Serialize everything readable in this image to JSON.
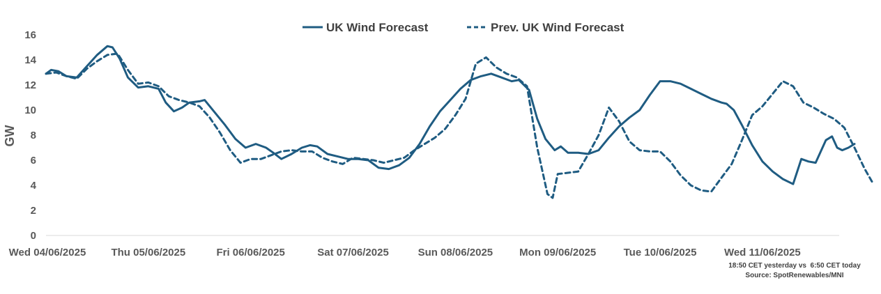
{
  "chart_data": {
    "type": "line",
    "title": "",
    "xlabel": "",
    "ylabel": "GW",
    "ylim": [
      0,
      16
    ],
    "yticks": [
      0,
      2,
      4,
      6,
      8,
      10,
      12,
      14,
      16
    ],
    "grid": false,
    "legend_position": "top-center",
    "color": "#1f5c82",
    "x_domain": [
      0,
      7.75
    ],
    "x_ticks": [
      {
        "x": 0,
        "label": "Wed 04/06/2025"
      },
      {
        "x": 1,
        "label": "Thu 05/06/2025"
      },
      {
        "x": 2,
        "label": "Fri 06/06/2025"
      },
      {
        "x": 3,
        "label": "Sat 07/06/2025"
      },
      {
        "x": 4,
        "label": "Sun 08/06/2025"
      },
      {
        "x": 5,
        "label": "Mon 09/06/2025"
      },
      {
        "x": 6,
        "label": "Tue 10/06/2025"
      },
      {
        "x": 7,
        "label": "Wed 11/06/2025"
      }
    ],
    "series": [
      {
        "name": "UK Wind Forecast",
        "style": "solid",
        "points": [
          [
            0,
            12.9
          ],
          [
            0.05,
            13.2
          ],
          [
            0.12,
            13.1
          ],
          [
            0.2,
            12.7
          ],
          [
            0.3,
            12.6
          ],
          [
            0.4,
            13.5
          ],
          [
            0.5,
            14.4
          ],
          [
            0.6,
            15.1
          ],
          [
            0.65,
            15.0
          ],
          [
            0.72,
            14.1
          ],
          [
            0.8,
            12.6
          ],
          [
            0.9,
            11.8
          ],
          [
            1,
            11.9
          ],
          [
            1.1,
            11.7
          ],
          [
            1.17,
            10.6
          ],
          [
            1.25,
            9.9
          ],
          [
            1.33,
            10.2
          ],
          [
            1.4,
            10.6
          ],
          [
            1.5,
            10.7
          ],
          [
            1.55,
            10.8
          ],
          [
            1.65,
            9.8
          ],
          [
            1.75,
            8.8
          ],
          [
            1.85,
            7.7
          ],
          [
            1.95,
            7.0
          ],
          [
            2.05,
            7.3
          ],
          [
            2.15,
            7.0
          ],
          [
            2.22,
            6.6
          ],
          [
            2.3,
            6.1
          ],
          [
            2.4,
            6.5
          ],
          [
            2.5,
            7.0
          ],
          [
            2.58,
            7.2
          ],
          [
            2.65,
            7.1
          ],
          [
            2.75,
            6.5
          ],
          [
            2.85,
            6.3
          ],
          [
            2.95,
            6.1
          ],
          [
            3.05,
            6.1
          ],
          [
            3.15,
            6.0
          ],
          [
            3.25,
            5.4
          ],
          [
            3.35,
            5.3
          ],
          [
            3.45,
            5.6
          ],
          [
            3.55,
            6.2
          ],
          [
            3.65,
            7.3
          ],
          [
            3.75,
            8.7
          ],
          [
            3.85,
            9.9
          ],
          [
            3.95,
            10.8
          ],
          [
            4.05,
            11.7
          ],
          [
            4.15,
            12.4
          ],
          [
            4.25,
            12.7
          ],
          [
            4.35,
            12.9
          ],
          [
            4.45,
            12.6
          ],
          [
            4.55,
            12.3
          ],
          [
            4.62,
            12.4
          ],
          [
            4.72,
            11.6
          ],
          [
            4.8,
            9.3
          ],
          [
            4.88,
            7.7
          ],
          [
            4.97,
            6.8
          ],
          [
            5.03,
            7.1
          ],
          [
            5.1,
            6.6
          ],
          [
            5.2,
            6.6
          ],
          [
            5.3,
            6.5
          ],
          [
            5.4,
            6.8
          ],
          [
            5.5,
            7.8
          ],
          [
            5.6,
            8.7
          ],
          [
            5.7,
            9.4
          ],
          [
            5.8,
            10.0
          ],
          [
            5.9,
            11.2
          ],
          [
            6,
            12.3
          ],
          [
            6.1,
            12.3
          ],
          [
            6.2,
            12.1
          ],
          [
            6.3,
            11.7
          ],
          [
            6.4,
            11.3
          ],
          [
            6.5,
            10.9
          ],
          [
            6.6,
            10.6
          ],
          [
            6.65,
            10.5
          ],
          [
            6.72,
            10.0
          ],
          [
            6.8,
            8.8
          ],
          [
            6.9,
            7.2
          ],
          [
            7,
            5.9
          ],
          [
            7.1,
            5.1
          ],
          [
            7.2,
            4.5
          ],
          [
            7.3,
            4.1
          ],
          [
            7.38,
            6.1
          ],
          [
            7.45,
            5.9
          ],
          [
            7.52,
            5.8
          ],
          [
            7.62,
            7.6
          ],
          [
            7.68,
            7.9
          ],
          [
            7.73,
            7.0
          ],
          [
            7.78,
            6.8
          ],
          [
            7.84,
            7.0
          ],
          [
            7.88,
            7.2
          ],
          [
            7.9,
            7.3
          ]
        ]
      },
      {
        "name": "Prev. UK Wind Forecast",
        "style": "dashed",
        "points": [
          [
            0,
            12.9
          ],
          [
            0.1,
            13.0
          ],
          [
            0.2,
            12.7
          ],
          [
            0.3,
            12.5
          ],
          [
            0.4,
            13.3
          ],
          [
            0.5,
            13.9
          ],
          [
            0.6,
            14.4
          ],
          [
            0.7,
            14.5
          ],
          [
            0.8,
            13.2
          ],
          [
            0.9,
            12.1
          ],
          [
            1,
            12.2
          ],
          [
            1.1,
            11.9
          ],
          [
            1.2,
            11.1
          ],
          [
            1.3,
            10.8
          ],
          [
            1.4,
            10.6
          ],
          [
            1.5,
            10.3
          ],
          [
            1.6,
            9.4
          ],
          [
            1.7,
            8.2
          ],
          [
            1.8,
            6.8
          ],
          [
            1.9,
            5.8
          ],
          [
            2,
            6.1
          ],
          [
            2.1,
            6.1
          ],
          [
            2.2,
            6.4
          ],
          [
            2.3,
            6.7
          ],
          [
            2.4,
            6.8
          ],
          [
            2.5,
            6.7
          ],
          [
            2.6,
            6.7
          ],
          [
            2.7,
            6.2
          ],
          [
            2.8,
            5.9
          ],
          [
            2.9,
            5.7
          ],
          [
            3.0,
            6.2
          ],
          [
            3.1,
            6.1
          ],
          [
            3.2,
            6.0
          ],
          [
            3.3,
            5.8
          ],
          [
            3.4,
            6.0
          ],
          [
            3.5,
            6.2
          ],
          [
            3.6,
            6.8
          ],
          [
            3.7,
            7.3
          ],
          [
            3.8,
            7.8
          ],
          [
            3.9,
            8.5
          ],
          [
            4,
            9.6
          ],
          [
            4.1,
            10.9
          ],
          [
            4.2,
            13.7
          ],
          [
            4.3,
            14.2
          ],
          [
            4.4,
            13.4
          ],
          [
            4.5,
            12.9
          ],
          [
            4.6,
            12.6
          ],
          [
            4.7,
            11.9
          ],
          [
            4.8,
            7.0
          ],
          [
            4.9,
            3.3
          ],
          [
            4.95,
            3.0
          ],
          [
            5.0,
            4.9
          ],
          [
            5.1,
            5.0
          ],
          [
            5.2,
            5.1
          ],
          [
            5.3,
            6.5
          ],
          [
            5.4,
            8.0
          ],
          [
            5.5,
            10.2
          ],
          [
            5.6,
            9.1
          ],
          [
            5.7,
            7.5
          ],
          [
            5.8,
            6.8
          ],
          [
            5.9,
            6.7
          ],
          [
            6,
            6.7
          ],
          [
            6.1,
            5.9
          ],
          [
            6.2,
            4.8
          ],
          [
            6.3,
            4.0
          ],
          [
            6.4,
            3.6
          ],
          [
            6.5,
            3.5
          ],
          [
            6.6,
            4.6
          ],
          [
            6.7,
            5.7
          ],
          [
            6.8,
            7.6
          ],
          [
            6.9,
            9.6
          ],
          [
            7.0,
            10.3
          ],
          [
            7.1,
            11.3
          ],
          [
            7.2,
            12.3
          ],
          [
            7.3,
            11.9
          ],
          [
            7.4,
            10.6
          ],
          [
            7.5,
            10.2
          ],
          [
            7.6,
            9.7
          ],
          [
            7.7,
            9.3
          ],
          [
            7.8,
            8.6
          ],
          [
            7.9,
            7.0
          ],
          [
            8.0,
            5.3
          ],
          [
            8.07,
            4.3
          ]
        ]
      }
    ]
  },
  "footnote": {
    "line1": "18:50 CET yesterday vs  6:50 CET today",
    "line2": "Source: SpotRenewables/MNI"
  }
}
